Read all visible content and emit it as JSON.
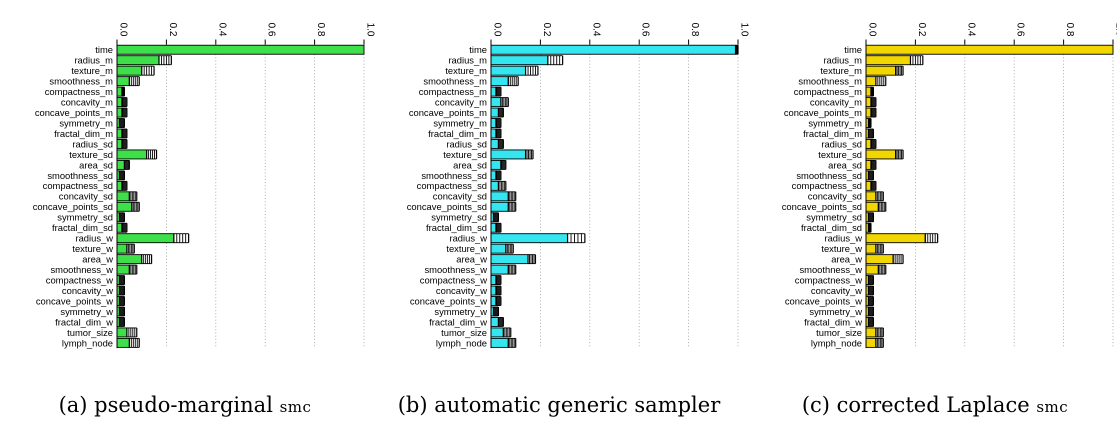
{
  "variables": [
    "time",
    "radius_m",
    "texture_m",
    "smoothness_m",
    "compactness_m",
    "concavity_m",
    "concave_points_m",
    "symmetry_m",
    "fractal_dim_m",
    "radius_sd",
    "texture_sd",
    "area_sd",
    "smoothness_sd",
    "compactness_sd",
    "concavity_sd",
    "concave_points_sd",
    "symmetry_sd",
    "fractal_dim_sd",
    "radius_w",
    "texture_w",
    "area_w",
    "smoothness_w",
    "compactness_w",
    "concavity_w",
    "concave_points_w",
    "symmetry_w",
    "fractal_dim_w",
    "tumor_size",
    "lymph_node"
  ],
  "chart_data": [
    {
      "type": "bar",
      "orientation": "horizontal",
      "caption_prefix": "(a) pseudo-marginal ",
      "caption_sc": "smc",
      "caption_suffix": "",
      "color": "#3ee04a",
      "x_ticks": [
        "0.0",
        "0.2",
        "0.4",
        "0.6",
        "0.8",
        "1.0"
      ],
      "xlim": [
        0,
        1
      ],
      "grid": true,
      "values": [
        1.0,
        0.17,
        0.1,
        0.05,
        0.02,
        0.02,
        0.02,
        0.01,
        0.02,
        0.02,
        0.12,
        0.03,
        0.01,
        0.02,
        0.05,
        0.06,
        0.01,
        0.02,
        0.23,
        0.04,
        0.1,
        0.05,
        0.01,
        0.01,
        0.01,
        0.01,
        0.01,
        0.04,
        0.05
      ],
      "spread": [
        0.0,
        0.05,
        0.05,
        0.04,
        0.01,
        0.02,
        0.02,
        0.02,
        0.02,
        0.02,
        0.04,
        0.02,
        0.02,
        0.02,
        0.03,
        0.03,
        0.02,
        0.02,
        0.06,
        0.03,
        0.04,
        0.03,
        0.02,
        0.02,
        0.02,
        0.02,
        0.02,
        0.04,
        0.04
      ]
    },
    {
      "type": "bar",
      "orientation": "horizontal",
      "caption_prefix": "(b) automatic generic sampler",
      "caption_sc": "",
      "caption_suffix": "",
      "color": "#35e5f0",
      "x_ticks": [
        "0.0",
        "0.2",
        "0.4",
        "0.6",
        "0.8",
        "1.0"
      ],
      "xlim": [
        0,
        1
      ],
      "grid": true,
      "values": [
        0.99,
        0.23,
        0.14,
        0.07,
        0.02,
        0.04,
        0.03,
        0.02,
        0.02,
        0.03,
        0.14,
        0.04,
        0.02,
        0.03,
        0.07,
        0.07,
        0.01,
        0.02,
        0.31,
        0.06,
        0.15,
        0.07,
        0.02,
        0.02,
        0.02,
        0.01,
        0.03,
        0.05,
        0.07
      ],
      "spread": [
        0.01,
        0.06,
        0.05,
        0.04,
        0.02,
        0.03,
        0.02,
        0.02,
        0.02,
        0.02,
        0.03,
        0.02,
        0.02,
        0.03,
        0.03,
        0.03,
        0.02,
        0.02,
        0.07,
        0.03,
        0.03,
        0.03,
        0.02,
        0.02,
        0.02,
        0.02,
        0.02,
        0.03,
        0.03
      ]
    },
    {
      "type": "bar",
      "orientation": "horizontal",
      "caption_prefix": "(c) corrected Laplace ",
      "caption_sc": "smc",
      "caption_suffix": "",
      "color": "#f2d600",
      "x_ticks": [
        "0.0",
        "0.2",
        "0.4",
        "0.6",
        "0.8",
        "1.0"
      ],
      "xlim": [
        0,
        1
      ],
      "grid": true,
      "values": [
        1.0,
        0.18,
        0.12,
        0.04,
        0.02,
        0.02,
        0.02,
        0.01,
        0.01,
        0.02,
        0.12,
        0.02,
        0.01,
        0.02,
        0.04,
        0.05,
        0.01,
        0.01,
        0.24,
        0.04,
        0.11,
        0.05,
        0.01,
        0.01,
        0.01,
        0.01,
        0.01,
        0.04,
        0.04
      ],
      "spread": [
        0.0,
        0.05,
        0.03,
        0.04,
        0.01,
        0.02,
        0.02,
        0.01,
        0.02,
        0.02,
        0.03,
        0.02,
        0.02,
        0.02,
        0.03,
        0.03,
        0.02,
        0.01,
        0.05,
        0.03,
        0.04,
        0.03,
        0.02,
        0.02,
        0.02,
        0.02,
        0.02,
        0.03,
        0.03
      ]
    }
  ]
}
